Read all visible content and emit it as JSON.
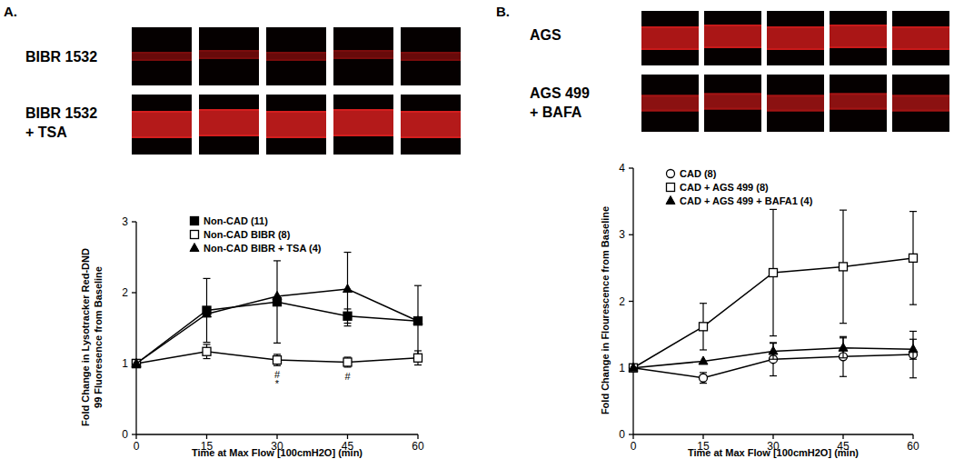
{
  "chart_data": [
    {
      "type": "line",
      "x_label": "Time at Max Flow [100cmH2O] (min)",
      "y_label": [
        "Fold Change in Lysotracker  Red-DND",
        "99 Fluoresence from Baseline"
      ],
      "xlim": [
        0,
        60
      ],
      "xticks": [
        0,
        15,
        30,
        45,
        60
      ],
      "ylim": [
        0,
        3
      ],
      "yticks": [
        0,
        1,
        2,
        3
      ],
      "grid": false,
      "legend": "top-left",
      "x": [
        0,
        15,
        30,
        45,
        60
      ],
      "series": [
        {
          "name": "Non-CAD (11)",
          "color": "#000000",
          "marker": "filled-square",
          "line_style": "solid",
          "values": [
            1,
            1.75,
            1.87,
            1.67,
            1.6
          ],
          "errors": [
            0,
            0.45,
            0.58,
            0.1,
            0.5
          ]
        },
        {
          "name": "Non-CAD BIBR (8)",
          "color": "#000000",
          "marker": "open-square",
          "line_style": "solid",
          "values": [
            1,
            1.17,
            1.05,
            1.02,
            1.08
          ],
          "errors": [
            0,
            0.1,
            0.08,
            0.07,
            0.1
          ]
        },
        {
          "name": "Non-CAD BIBR + TSA (4)",
          "color": "#000000",
          "marker": "triangle",
          "line_style": "solid",
          "values": [
            1,
            1.7,
            1.95,
            2.05,
            1.6
          ],
          "errors": [
            0,
            0,
            0,
            0.52,
            0
          ]
        }
      ],
      "annotations": [
        {
          "text": "#",
          "x": 30
        },
        {
          "text": "*",
          "x": 30
        },
        {
          "text": "#",
          "x": 45
        }
      ]
    },
    {
      "type": "line",
      "x_label": "Time at Max Flow [100cmH2O] (min)",
      "y_label": [
        "Fold Change in Flourescence from Baseline"
      ],
      "xlim": [
        0,
        60
      ],
      "xticks": [
        0,
        15,
        30,
        45,
        60
      ],
      "ylim": [
        0,
        4
      ],
      "yticks": [
        0,
        1,
        2,
        3,
        4
      ],
      "grid": false,
      "legend": "top-left",
      "x": [
        0,
        15,
        30,
        45,
        60
      ],
      "series": [
        {
          "name": "CAD (8)",
          "color": "#000000",
          "marker": "open-circle",
          "line_style": "solid",
          "values": [
            1,
            0.85,
            1.13,
            1.17,
            1.2
          ],
          "errors": [
            0,
            0.08,
            0.25,
            0.3,
            0.35
          ]
        },
        {
          "name": "CAD + AGS 499 (8)",
          "color": "#000000",
          "marker": "open-square",
          "line_style": "solid",
          "values": [
            1,
            1.62,
            2.43,
            2.52,
            2.65
          ],
          "errors": [
            0,
            0.35,
            0.95,
            0.85,
            0.7
          ]
        },
        {
          "name": "CAD + AGS 499 + BAFA1 (4)",
          "color": "#000000",
          "marker": "triangle",
          "line_style": "solid",
          "values": [
            1,
            1.1,
            1.25,
            1.3,
            1.28
          ],
          "errors": [
            0,
            0,
            0.12,
            0.15,
            0.15
          ]
        }
      ]
    }
  ],
  "panels": [
    {
      "label": "A.",
      "image_rows": [
        [
          "BIBR 1532"
        ],
        [
          "BIBR 1532",
          "+ TSA"
        ]
      ]
    },
    {
      "label": "B.",
      "image_rows": [
        [
          "AGS"
        ],
        [
          "AGS 499",
          "+ BAFA"
        ]
      ]
    }
  ]
}
